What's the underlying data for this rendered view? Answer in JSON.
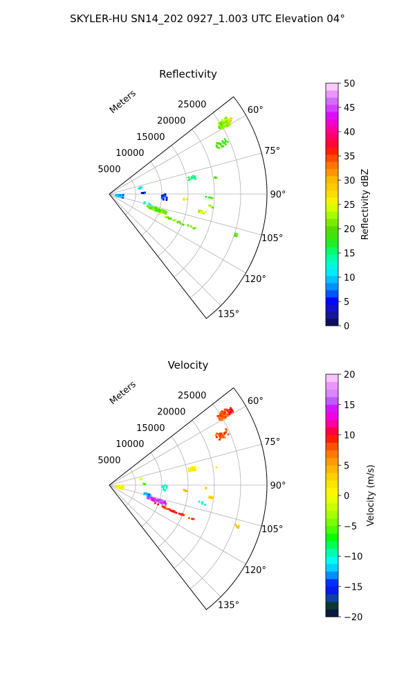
{
  "figure": {
    "title": "SKYLER-HU  SN14_202  0927_1.003 UTC Elevation 04°"
  },
  "chart_data": [
    {
      "type": "polar-sector",
      "title": "Reflectivity",
      "radial_label": "Meters",
      "radial_ticks": [
        "5000",
        "10000",
        "15000",
        "20000",
        "25000"
      ],
      "radial_range": [
        0,
        30000
      ],
      "angle_range_deg": [
        52,
        142
      ],
      "angle_ticks": [
        "60°",
        "75°",
        "90°",
        "105°",
        "120°",
        "135°"
      ],
      "grid": true,
      "colorbar": {
        "label": "Reflectivity dBZ",
        "range": [
          0,
          50
        ],
        "ticks": [
          "0",
          "5",
          "10",
          "15",
          "20",
          "25",
          "30",
          "35",
          "40",
          "45",
          "50"
        ]
      },
      "field": "reflectivity",
      "blobs": [
        {
          "az": 58.5,
          "r": 25500,
          "dr": 2400,
          "daz": 3.5,
          "value": 22,
          "density": 0.75
        },
        {
          "az": 58.5,
          "r": 27000,
          "dr": 1000,
          "daz": 2.0,
          "value": 27,
          "density": 0.8
        },
        {
          "az": 66,
          "r": 23500,
          "dr": 2500,
          "daz": 3.5,
          "value": 19,
          "density": 0.35
        },
        {
          "az": 79,
          "r": 16000,
          "dr": 1500,
          "daz": 2.5,
          "value": 15,
          "density": 0.7
        },
        {
          "az": 81,
          "r": 20500,
          "dr": 600,
          "daz": 1.0,
          "value": 20,
          "density": 0.5
        },
        {
          "az": 79,
          "r": 6000,
          "dr": 900,
          "daz": 2.0,
          "value": 9,
          "density": 0.3
        },
        {
          "az": 88,
          "r": 6500,
          "dr": 900,
          "daz": 1.5,
          "value": 4,
          "density": 0.35
        },
        {
          "az": 93,
          "r": 10500,
          "dr": 1200,
          "daz": 6.0,
          "value": 5,
          "density": 0.25
        },
        {
          "az": 108,
          "r": 9500,
          "dr": 4000,
          "daz": 3.5,
          "value": 20,
          "density": 0.55
        },
        {
          "az": 104,
          "r": 7500,
          "dr": 1500,
          "daz": 3.0,
          "value": 13,
          "density": 0.35
        },
        {
          "az": 112,
          "r": 13500,
          "dr": 8500,
          "daz": 1.2,
          "value": 22,
          "density": 0.35
        },
        {
          "az": 101,
          "r": 18000,
          "dr": 1500,
          "daz": 1.5,
          "value": 23,
          "density": 0.5
        },
        {
          "az": 97,
          "r": 19500,
          "dr": 1000,
          "daz": 1.2,
          "value": 22,
          "density": 0.4
        },
        {
          "az": 108,
          "r": 25500,
          "dr": 1000,
          "daz": 1.5,
          "value": 20,
          "density": 0.45
        },
        {
          "az": 92,
          "r": 19000,
          "dr": 1500,
          "daz": 1.0,
          "value": 20,
          "density": 0.3
        },
        {
          "az": 100,
          "r": 2000,
          "dr": 1600,
          "daz": 14.0,
          "value": 9,
          "density": 0.25
        },
        {
          "az": 94,
          "r": 14500,
          "dr": 800,
          "daz": 1.0,
          "value": 25,
          "density": 0.45
        }
      ]
    },
    {
      "type": "polar-sector",
      "title": "Velocity",
      "radial_label": "Meters",
      "radial_ticks": [
        "5000",
        "10000",
        "15000",
        "20000",
        "25000"
      ],
      "radial_range": [
        0,
        30000
      ],
      "angle_range_deg": [
        52,
        142
      ],
      "angle_ticks": [
        "60°",
        "75°",
        "90°",
        "105°",
        "120°",
        "135°"
      ],
      "grid": true,
      "colorbar": {
        "label": "Velocity (m/s)",
        "range": [
          -20,
          20
        ],
        "ticks": [
          "−20",
          "−15",
          "−10",
          "−5",
          "0",
          "5",
          "10",
          "15",
          "20"
        ]
      },
      "field": "velocity",
      "blobs": [
        {
          "az": 58.5,
          "r": 25500,
          "dr": 2400,
          "daz": 3.5,
          "value": 8,
          "density": 0.75
        },
        {
          "az": 58.5,
          "r": 27000,
          "dr": 1000,
          "daz": 2.0,
          "value": 10,
          "density": 0.8
        },
        {
          "az": 66,
          "r": 23500,
          "dr": 2500,
          "daz": 3.5,
          "value": 8,
          "density": 0.35
        },
        {
          "az": 79,
          "r": 16000,
          "dr": 1500,
          "daz": 2.5,
          "value": 1,
          "density": 0.7
        },
        {
          "az": 81,
          "r": 20500,
          "dr": 600,
          "daz": 1.0,
          "value": 3,
          "density": 0.5
        },
        {
          "az": 79,
          "r": 6000,
          "dr": 900,
          "daz": 2.0,
          "value": -2,
          "density": 0.3
        },
        {
          "az": 88,
          "r": 6500,
          "dr": 900,
          "daz": 1.5,
          "value": -5,
          "density": 0.35
        },
        {
          "az": 93,
          "r": 10500,
          "dr": 1200,
          "daz": 6.0,
          "value": -10,
          "density": 0.2
        },
        {
          "az": 108,
          "r": 9500,
          "dr": 4000,
          "daz": 3.5,
          "value": 15,
          "density": 0.55
        },
        {
          "az": 104,
          "r": 7500,
          "dr": 1500,
          "daz": 3.0,
          "value": -13,
          "density": 0.35
        },
        {
          "az": 112,
          "r": 13500,
          "dr": 8500,
          "daz": 1.2,
          "value": 9,
          "density": 0.35
        },
        {
          "az": 101,
          "r": 18000,
          "dr": 1500,
          "daz": 1.5,
          "value": -10,
          "density": 0.5
        },
        {
          "az": 97,
          "r": 19500,
          "dr": 1000,
          "daz": 1.2,
          "value": 3,
          "density": 0.4
        },
        {
          "az": 108,
          "r": 25500,
          "dr": 1000,
          "daz": 1.5,
          "value": 3,
          "density": 0.45
        },
        {
          "az": 92,
          "r": 19000,
          "dr": 1500,
          "daz": 1.0,
          "value": 4,
          "density": 0.3
        },
        {
          "az": 100,
          "r": 2000,
          "dr": 1600,
          "daz": 14.0,
          "value": 1,
          "density": 0.25
        },
        {
          "az": 94,
          "r": 14500,
          "dr": 800,
          "daz": 1.0,
          "value": 5,
          "density": 0.45
        }
      ]
    }
  ]
}
